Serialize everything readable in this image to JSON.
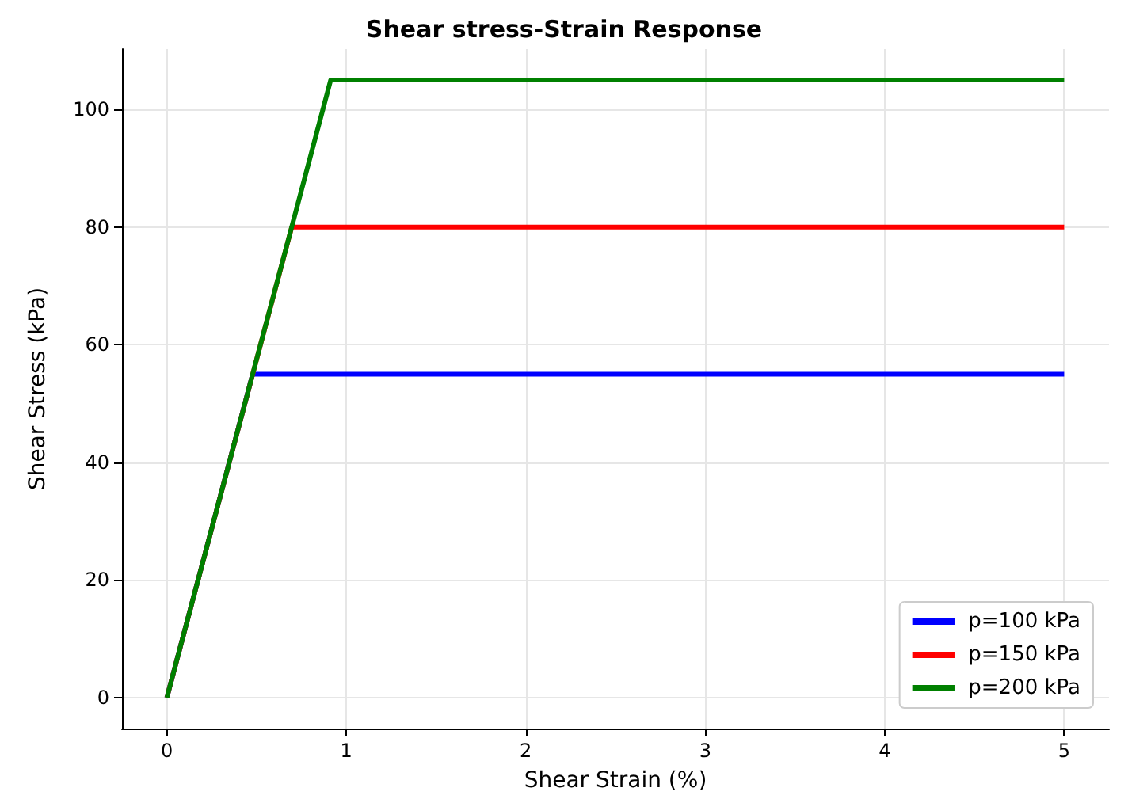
{
  "chart_data": {
    "type": "line",
    "title": "Shear stress-Strain Response",
    "xlabel": "Shear Strain (%)",
    "ylabel": "Shear Stress (kPa)",
    "series": [
      {
        "name": "p=100 kPa",
        "color": "#0000ff",
        "x": [
          0,
          0.478,
          5
        ],
        "values": [
          0,
          55,
          55
        ]
      },
      {
        "name": "p=150 kPa",
        "color": "#ff0000",
        "x": [
          0,
          0.696,
          5
        ],
        "values": [
          0,
          80,
          80
        ]
      },
      {
        "name": "p=200 kPa",
        "color": "#008000",
        "x": [
          0,
          0.913,
          5
        ],
        "values": [
          0,
          105,
          105
        ]
      }
    ],
    "xlim": [
      -0.25,
      5.25
    ],
    "xticks": [
      0,
      1,
      2,
      3,
      4,
      5
    ],
    "ylim": [
      -5.25,
      110.25
    ],
    "yticks": [
      0,
      20,
      40,
      60,
      80,
      100
    ],
    "grid": true,
    "legend": "bottom right",
    "marker": "none",
    "line_style": "solid"
  }
}
